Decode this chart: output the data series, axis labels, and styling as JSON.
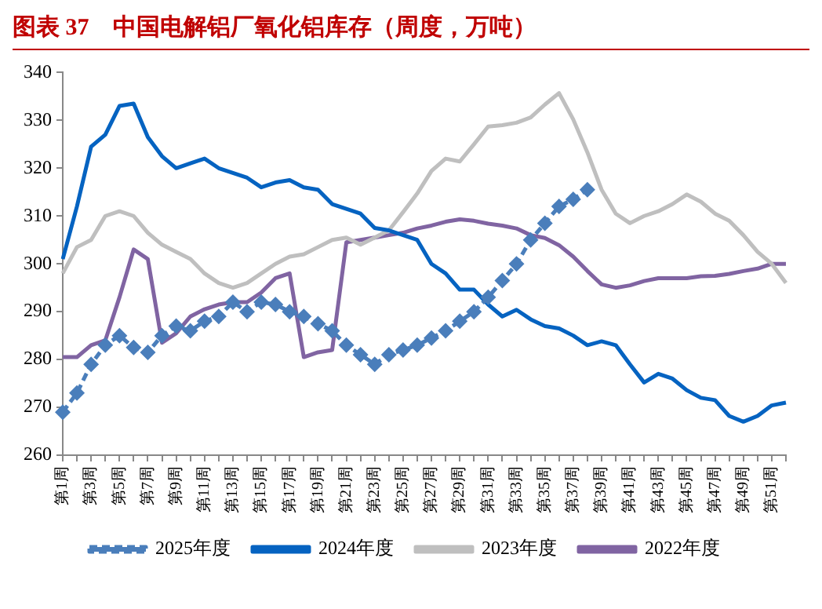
{
  "chart_data": {
    "type": "line",
    "title": "图表 37　中国电解铝厂氧化铝库存（周度，万吨）",
    "categories": [
      "第1周",
      null,
      "第3周",
      null,
      "第5周",
      null,
      "第7周",
      null,
      "第9周",
      null,
      "第11周",
      null,
      "第13周",
      null,
      "第15周",
      null,
      "第17周",
      null,
      "第19周",
      null,
      "第21周",
      null,
      "第23周",
      null,
      "第25周",
      null,
      "第27周",
      null,
      "第29周",
      null,
      "第31周",
      null,
      "第33周",
      null,
      "第35周",
      null,
      "第37周",
      null,
      "第39周",
      null,
      "第41周",
      null,
      "第43周",
      null,
      "第45周",
      null,
      "第47周",
      null,
      "第49周",
      null,
      "第51周",
      null
    ],
    "series": [
      {
        "name": "2025年度",
        "color": "#4a7ebb",
        "marker": "diamond",
        "line_style": "dashed",
        "values": [
          269,
          273,
          279,
          283,
          285,
          282.5,
          281.5,
          285,
          287,
          286,
          288,
          289,
          292,
          290,
          292,
          291.5,
          290,
          289,
          287.5,
          286,
          283,
          281,
          279,
          281,
          282,
          283,
          284.5,
          286,
          288,
          290,
          293,
          296.5,
          300,
          305,
          308.5,
          312,
          313.5,
          315.5,
          null,
          null,
          null,
          null,
          null,
          null,
          null,
          null,
          null,
          null,
          null,
          null,
          null,
          null
        ]
      },
      {
        "name": "2024年度",
        "color": "#0563c1",
        "values": [
          301,
          312,
          324.5,
          327,
          333,
          333.5,
          326.5,
          322.5,
          320,
          321,
          322,
          320,
          319,
          318,
          316,
          317,
          317.5,
          316,
          315.5,
          312.5,
          311.5,
          310.5,
          307.5,
          307,
          306,
          305,
          300,
          298,
          294.6,
          294.6,
          291.5,
          289,
          290.4,
          288.4,
          287,
          286.5,
          285,
          283,
          283.8,
          283,
          279,
          275.2,
          277,
          276,
          273.6,
          272,
          271.5,
          268.2,
          267,
          268.2,
          270.4,
          271
        ]
      },
      {
        "name": "2023年度",
        "color": "#bfbfbf",
        "values": [
          298,
          303.5,
          305,
          310,
          311,
          310,
          306.5,
          304,
          302.5,
          301,
          298,
          296,
          295,
          296,
          298,
          300,
          301.5,
          302,
          303.5,
          305,
          305.5,
          304,
          305.5,
          307,
          310.8,
          314.7,
          319.4,
          322,
          321.4,
          325,
          328.7,
          329,
          329.5,
          330.6,
          333.3,
          335.7,
          330.2,
          323.3,
          315.5,
          310.5,
          308.5,
          310,
          311,
          312.5,
          314.5,
          313,
          310.5,
          309,
          306,
          302.5,
          300,
          296
        ]
      },
      {
        "name": "2022年度",
        "color": "#8064a2",
        "values": [
          280.5,
          280.5,
          283,
          284,
          293,
          303,
          301,
          283.5,
          285.5,
          289,
          290.5,
          291.5,
          292,
          292,
          294,
          297,
          298,
          280.5,
          281.5,
          282,
          304.5,
          305,
          305.5,
          306,
          306.5,
          307.4,
          308,
          308.8,
          309.3,
          309,
          308.4,
          308,
          307.4,
          306,
          305.4,
          303.9,
          301.5,
          298.5,
          295.7,
          295,
          295.5,
          296.4,
          297,
          297,
          297,
          297.4,
          297.5,
          297.9,
          298.5,
          299,
          300,
          300
        ]
      }
    ],
    "ylim": [
      260,
      340
    ],
    "yticks": [
      260,
      270,
      280,
      290,
      300,
      310,
      320,
      330,
      340
    ],
    "grid": false,
    "legend": "bottom"
  }
}
